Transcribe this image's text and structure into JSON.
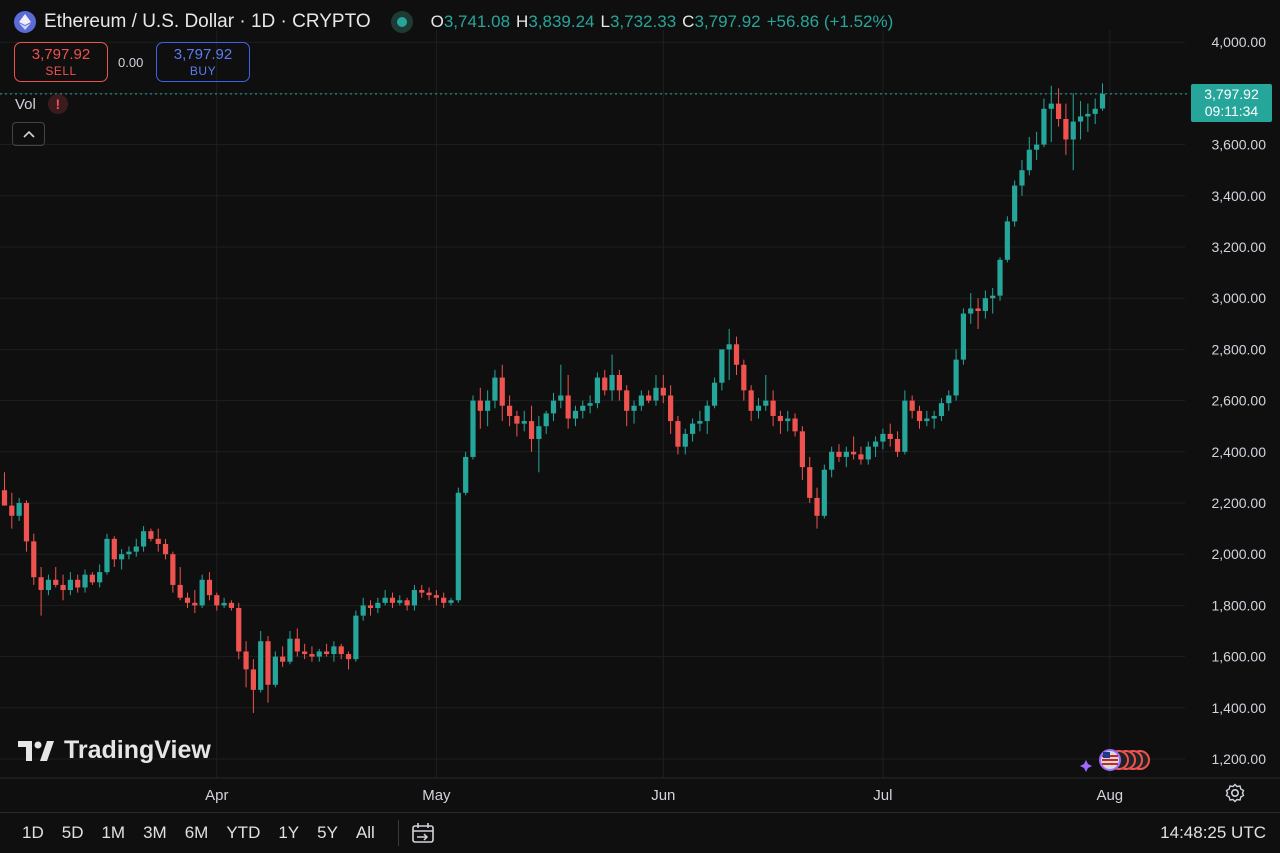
{
  "header": {
    "title": "Ethereum / U.S. Dollar · 1D · CRYPTO",
    "ohlc": {
      "o_label": "O",
      "o": "3,741.08",
      "h_label": "H",
      "h": "3,839.24",
      "l_label": "L",
      "l": "3,732.33",
      "c_label": "C",
      "c": "3,797.92",
      "change": "+56.86 (+1.52%)"
    }
  },
  "trade": {
    "sell_price": "3,797.92",
    "sell_label": "SELL",
    "spread": "0.00",
    "buy_price": "3,797.92",
    "buy_label": "BUY"
  },
  "indicators": {
    "vol_label": "Vol",
    "warning": "!"
  },
  "price_tag": {
    "price": "3,797.92",
    "countdown": "09:11:34"
  },
  "watermark": "TradingView",
  "toolbar": {
    "timeframes": [
      "1D",
      "5D",
      "1M",
      "3M",
      "6M",
      "YTD",
      "1Y",
      "5Y",
      "All"
    ],
    "clock": "14:48:25 UTC"
  },
  "colors": {
    "up": "#26a69a",
    "down": "#ef5350",
    "background": "#0f0f0f",
    "grid": "#1f1f1f"
  },
  "icons": [
    "ethereum-icon",
    "market-status-icon",
    "collapse-chevron-icon",
    "date-range-icon",
    "settings-gear-icon",
    "economic-events-flags-icon",
    "tradingview-logo-icon"
  ],
  "chart_data": {
    "type": "candlestick",
    "y_axis": {
      "min": 1150,
      "max": 4100,
      "step": 200,
      "labels": [
        "1,200.00",
        "1,400.00",
        "1,600.00",
        "1,800.00",
        "2,000.00",
        "2,200.00",
        "2,400.00",
        "2,600.00",
        "2,800.00",
        "3,000.00",
        "3,200.00",
        "3,400.00",
        "3,600.00",
        "3,800.00",
        "4,000.00"
      ]
    },
    "x_axis": {
      "labels": [
        {
          "text": "Apr",
          "index": 29
        },
        {
          "text": "May",
          "index": 59
        },
        {
          "text": "Jun",
          "index": 90
        },
        {
          "text": "Jul",
          "index": 120
        },
        {
          "text": "Aug",
          "index": 151
        }
      ]
    },
    "last_price": 3797.92,
    "candles": [
      [
        2250,
        2320,
        2200,
        2190
      ],
      [
        2190,
        2240,
        2100,
        2150
      ],
      [
        2150,
        2220,
        2130,
        2200
      ],
      [
        2200,
        2210,
        2010,
        2050
      ],
      [
        2050,
        2080,
        1880,
        1910
      ],
      [
        1910,
        1950,
        1760,
        1860
      ],
      [
        1860,
        1920,
        1840,
        1900
      ],
      [
        1900,
        1950,
        1870,
        1880
      ],
      [
        1880,
        1920,
        1820,
        1860
      ],
      [
        1860,
        1930,
        1840,
        1900
      ],
      [
        1900,
        1920,
        1850,
        1870
      ],
      [
        1870,
        1940,
        1850,
        1920
      ],
      [
        1920,
        1930,
        1880,
        1890
      ],
      [
        1890,
        1960,
        1870,
        1930
      ],
      [
        1930,
        2080,
        1920,
        2060
      ],
      [
        2060,
        2070,
        1950,
        1980
      ],
      [
        1980,
        2020,
        1940,
        2000
      ],
      [
        2000,
        2030,
        1980,
        2010
      ],
      [
        2010,
        2060,
        1990,
        2030
      ],
      [
        2030,
        2110,
        2010,
        2090
      ],
      [
        2090,
        2100,
        2050,
        2060
      ],
      [
        2060,
        2100,
        2010,
        2040
      ],
      [
        2040,
        2060,
        1980,
        2000
      ],
      [
        2000,
        2010,
        1850,
        1880
      ],
      [
        1880,
        1950,
        1820,
        1830
      ],
      [
        1830,
        1850,
        1790,
        1810
      ],
      [
        1810,
        1860,
        1770,
        1800
      ],
      [
        1800,
        1920,
        1790,
        1900
      ],
      [
        1900,
        1930,
        1820,
        1840
      ],
      [
        1840,
        1850,
        1780,
        1800
      ],
      [
        1800,
        1830,
        1790,
        1810
      ],
      [
        1810,
        1820,
        1780,
        1790
      ],
      [
        1790,
        1810,
        1590,
        1620
      ],
      [
        1620,
        1660,
        1480,
        1550
      ],
      [
        1550,
        1590,
        1380,
        1470
      ],
      [
        1470,
        1700,
        1460,
        1660
      ],
      [
        1660,
        1680,
        1420,
        1490
      ],
      [
        1490,
        1620,
        1480,
        1600
      ],
      [
        1600,
        1640,
        1560,
        1580
      ],
      [
        1580,
        1700,
        1570,
        1670
      ],
      [
        1670,
        1710,
        1600,
        1620
      ],
      [
        1620,
        1650,
        1590,
        1610
      ],
      [
        1610,
        1640,
        1580,
        1600
      ],
      [
        1600,
        1630,
        1580,
        1620
      ],
      [
        1620,
        1650,
        1600,
        1610
      ],
      [
        1610,
        1660,
        1580,
        1640
      ],
      [
        1640,
        1650,
        1590,
        1610
      ],
      [
        1610,
        1620,
        1550,
        1590
      ],
      [
        1590,
        1780,
        1580,
        1760
      ],
      [
        1760,
        1830,
        1740,
        1800
      ],
      [
        1800,
        1820,
        1760,
        1790
      ],
      [
        1790,
        1830,
        1770,
        1810
      ],
      [
        1810,
        1860,
        1800,
        1830
      ],
      [
        1830,
        1850,
        1790,
        1810
      ],
      [
        1810,
        1840,
        1800,
        1820
      ],
      [
        1820,
        1830,
        1780,
        1800
      ],
      [
        1800,
        1880,
        1780,
        1860
      ],
      [
        1860,
        1880,
        1830,
        1850
      ],
      [
        1850,
        1870,
        1820,
        1840
      ],
      [
        1840,
        1860,
        1800,
        1830
      ],
      [
        1830,
        1850,
        1790,
        1810
      ],
      [
        1810,
        1830,
        1800,
        1820
      ],
      [
        1820,
        2260,
        1810,
        2240
      ],
      [
        2240,
        2400,
        2230,
        2380
      ],
      [
        2380,
        2620,
        2370,
        2600
      ],
      [
        2600,
        2650,
        2490,
        2560
      ],
      [
        2560,
        2640,
        2500,
        2600
      ],
      [
        2600,
        2720,
        2570,
        2690
      ],
      [
        2690,
        2740,
        2520,
        2580
      ],
      [
        2580,
        2620,
        2500,
        2540
      ],
      [
        2540,
        2560,
        2460,
        2510
      ],
      [
        2510,
        2560,
        2480,
        2520
      ],
      [
        2520,
        2580,
        2400,
        2450
      ],
      [
        2450,
        2540,
        2320,
        2500
      ],
      [
        2500,
        2560,
        2470,
        2550
      ],
      [
        2550,
        2630,
        2520,
        2600
      ],
      [
        2600,
        2740,
        2570,
        2620
      ],
      [
        2620,
        2700,
        2490,
        2530
      ],
      [
        2530,
        2580,
        2500,
        2560
      ],
      [
        2560,
        2600,
        2530,
        2580
      ],
      [
        2580,
        2620,
        2550,
        2590
      ],
      [
        2590,
        2710,
        2570,
        2690
      ],
      [
        2690,
        2720,
        2620,
        2640
      ],
      [
        2640,
        2780,
        2600,
        2700
      ],
      [
        2700,
        2720,
        2600,
        2640
      ],
      [
        2640,
        2660,
        2500,
        2560
      ],
      [
        2560,
        2600,
        2510,
        2580
      ],
      [
        2580,
        2640,
        2560,
        2620
      ],
      [
        2620,
        2640,
        2590,
        2600
      ],
      [
        2600,
        2700,
        2580,
        2650
      ],
      [
        2650,
        2700,
        2590,
        2620
      ],
      [
        2620,
        2660,
        2470,
        2520
      ],
      [
        2520,
        2540,
        2390,
        2420
      ],
      [
        2420,
        2490,
        2390,
        2470
      ],
      [
        2470,
        2530,
        2440,
        2510
      ],
      [
        2510,
        2560,
        2480,
        2520
      ],
      [
        2520,
        2600,
        2470,
        2580
      ],
      [
        2580,
        2690,
        2570,
        2670
      ],
      [
        2670,
        2780,
        2640,
        2800
      ],
      [
        2800,
        2880,
        2680,
        2820
      ],
      [
        2820,
        2850,
        2700,
        2740
      ],
      [
        2740,
        2760,
        2600,
        2640
      ],
      [
        2640,
        2660,
        2520,
        2560
      ],
      [
        2560,
        2610,
        2530,
        2580
      ],
      [
        2580,
        2700,
        2560,
        2600
      ],
      [
        2600,
        2640,
        2500,
        2540
      ],
      [
        2540,
        2560,
        2470,
        2520
      ],
      [
        2520,
        2560,
        2480,
        2530
      ],
      [
        2530,
        2550,
        2460,
        2480
      ],
      [
        2480,
        2500,
        2290,
        2340
      ],
      [
        2340,
        2380,
        2200,
        2220
      ],
      [
        2220,
        2260,
        2100,
        2150
      ],
      [
        2150,
        2350,
        2140,
        2330
      ],
      [
        2330,
        2420,
        2300,
        2400
      ],
      [
        2400,
        2430,
        2360,
        2380
      ],
      [
        2380,
        2420,
        2340,
        2400
      ],
      [
        2400,
        2460,
        2370,
        2390
      ],
      [
        2390,
        2420,
        2350,
        2370
      ],
      [
        2370,
        2440,
        2350,
        2420
      ],
      [
        2420,
        2460,
        2380,
        2440
      ],
      [
        2440,
        2490,
        2410,
        2470
      ],
      [
        2470,
        2510,
        2420,
        2450
      ],
      [
        2450,
        2480,
        2380,
        2400
      ],
      [
        2400,
        2640,
        2390,
        2600
      ],
      [
        2600,
        2620,
        2530,
        2560
      ],
      [
        2560,
        2580,
        2490,
        2520
      ],
      [
        2520,
        2560,
        2500,
        2530
      ],
      [
        2530,
        2560,
        2490,
        2540
      ],
      [
        2540,
        2610,
        2520,
        2590
      ],
      [
        2590,
        2640,
        2560,
        2620
      ],
      [
        2620,
        2800,
        2600,
        2760
      ],
      [
        2760,
        2960,
        2740,
        2940
      ],
      [
        2940,
        3020,
        2900,
        2960
      ],
      [
        2960,
        3000,
        2880,
        2950
      ],
      [
        2950,
        3030,
        2920,
        3000
      ],
      [
        3000,
        3040,
        2940,
        3010
      ],
      [
        3010,
        3160,
        2990,
        3150
      ],
      [
        3150,
        3320,
        3140,
        3300
      ],
      [
        3300,
        3460,
        3280,
        3440
      ],
      [
        3440,
        3540,
        3400,
        3500
      ],
      [
        3500,
        3630,
        3480,
        3580
      ],
      [
        3580,
        3650,
        3540,
        3600
      ],
      [
        3600,
        3780,
        3590,
        3740
      ],
      [
        3740,
        3830,
        3610,
        3760
      ],
      [
        3760,
        3820,
        3670,
        3700
      ],
      [
        3700,
        3760,
        3560,
        3620
      ],
      [
        3620,
        3800,
        3500,
        3690
      ],
      [
        3690,
        3770,
        3620,
        3710
      ],
      [
        3710,
        3760,
        3650,
        3720
      ],
      [
        3720,
        3780,
        3680,
        3740
      ],
      [
        3741.08,
        3839.24,
        3732.33,
        3797.92
      ]
    ]
  }
}
